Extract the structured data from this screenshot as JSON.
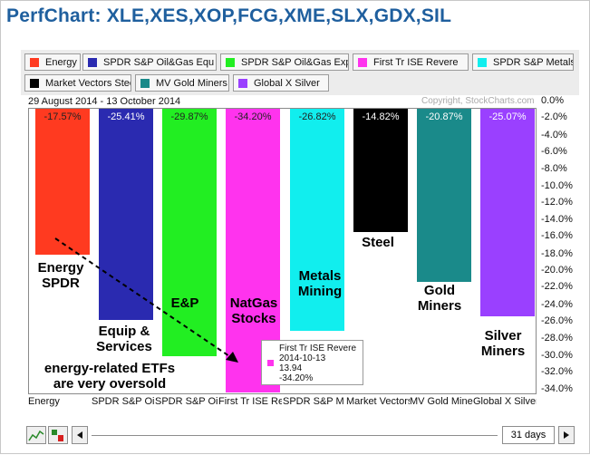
{
  "title": "PerfChart: XLE,XES,XOP,FCG,XME,SLX,GDX,SIL",
  "date_range": "29 August 2014 - 13 October 2014",
  "copyright": "Copyright, StockCharts.com",
  "legend": [
    {
      "label": "Energy",
      "color": "#ff3a20"
    },
    {
      "label": "SPDR S&P Oil&Gas Equ",
      "color": "#2a2ab0"
    },
    {
      "label": "SPDR S&P Oil&Gas Exp",
      "color": "#22ee22"
    },
    {
      "label": "First Tr ISE Revere",
      "color": "#ff33ee"
    },
    {
      "label": "SPDR S&P Metals",
      "color": "#11eeee"
    },
    {
      "label": "Market Vectors Steel",
      "color": "#000000"
    },
    {
      "label": "MV Gold Miners",
      "color": "#1a8a8a"
    },
    {
      "label": "Global X Silver",
      "color": "#9a40ff"
    }
  ],
  "chart_data": {
    "type": "bar",
    "categories": [
      "Energy",
      "SPDR S&P Oil&Gas Equ",
      "SPDR S&P Oil&Gas Exp",
      "First Tr ISE Revere",
      "SPDR S&P Metals",
      "Market Vectors Steel",
      "MV Gold Miners",
      "Global X Silver"
    ],
    "values": [
      -17.57,
      -25.41,
      -29.87,
      -34.2,
      -26.82,
      -14.82,
      -20.87,
      -25.07
    ],
    "value_labels": [
      "-17.57%",
      "-25.41%",
      "-29.87%",
      "-34.20%",
      "-26.82%",
      "-14.82%",
      "-20.87%",
      "-25.07%"
    ],
    "colors": [
      "#ff3a20",
      "#2a2ab0",
      "#22ee22",
      "#ff33ee",
      "#11eeee",
      "#000000",
      "#1a8a8a",
      "#9a40ff"
    ],
    "x_tick_labels": [
      "Energy",
      "SPDR S&P Oil",
      "SPDR S&P Oil&G",
      "First Tr ISE Re",
      "SPDR S&P M",
      "Market Vectors S",
      "MV Gold Miner",
      "Global X Silver"
    ],
    "ylim": [
      -35,
      0.5
    ],
    "y_ticks": [
      0,
      -2,
      -4,
      -6,
      -8,
      -10,
      -12,
      -14,
      -16,
      -18,
      -20,
      -22,
      -24,
      -26,
      -28,
      -30,
      -32,
      -34
    ],
    "y_tick_labels": [
      "0.0%",
      "-2.0%",
      "-4.0%",
      "-6.0%",
      "-8.0%",
      "-10.0%",
      "-12.0%",
      "-14.0%",
      "-16.0%",
      "-18.0%",
      "-20.0%",
      "-22.0%",
      "-24.0%",
      "-26.0%",
      "-28.0%",
      "-30.0%",
      "-32.0%",
      "-34.0%"
    ],
    "grid": false,
    "axis_position": "right"
  },
  "annotations": {
    "energy": [
      "Energy",
      "SPDR"
    ],
    "equip": [
      "Equip &",
      "Services"
    ],
    "ep": [
      "E&P"
    ],
    "natgas": [
      "NatGas",
      "Stocks"
    ],
    "metals": [
      "Metals",
      "Mining"
    ],
    "steel": [
      "Steel"
    ],
    "gold": [
      "Gold",
      "Miners"
    ],
    "silver": [
      "Silver",
      "Miners"
    ],
    "note": [
      "energy-related ETFs",
      "are very oversold"
    ]
  },
  "tooltip": {
    "name": "First Tr ISE Revere",
    "date": "2014-10-13",
    "price": "13.94",
    "change": "-34.20%",
    "color": "#ff33ee"
  },
  "controls": {
    "period": "31 days",
    "prev_icon": "triangle-left-icon",
    "next_icon": "triangle-right-icon",
    "chart_icon": "line-chart-icon",
    "bar_icon": "bar-chart-icon"
  }
}
